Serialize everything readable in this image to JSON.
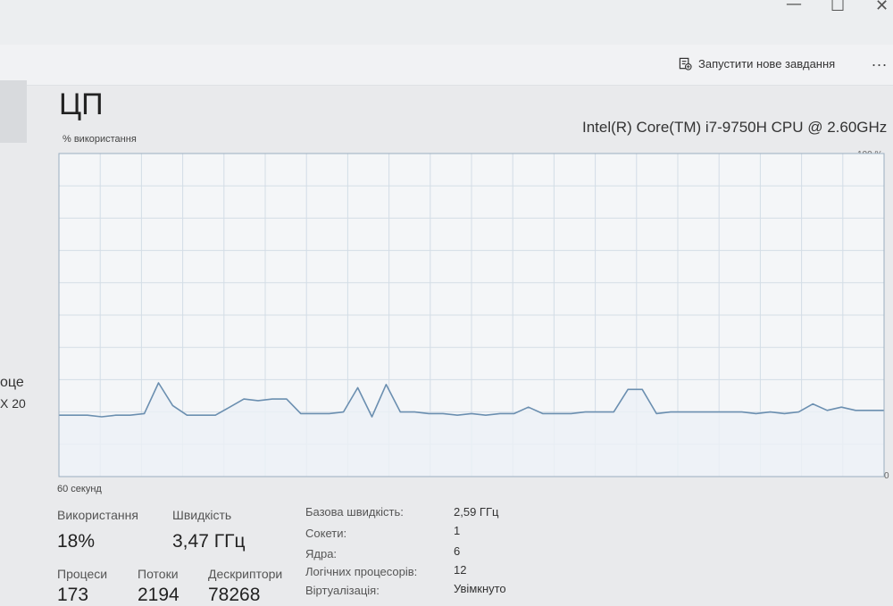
{
  "window": {
    "minimize": "—",
    "maximize": "☐",
    "close": "✕"
  },
  "toolbar": {
    "run_task_label": "Запустити нове завдання",
    "more": "..."
  },
  "sidebar": {
    "text1": "оце",
    "text2": "X 20"
  },
  "header": {
    "title": "ЦП",
    "cpu_model": "Intel(R) Core(TM) i7-9750H CPU @ 2.60GHz"
  },
  "graph": {
    "usage_label": "% використання",
    "max_label": "100 %",
    "min_label": "0",
    "time_label": "60 секунд",
    "colors": {
      "line": "#6b8fb0",
      "grid": "#d3dde6",
      "bg": "#f4f6f8",
      "fill": "#ecf1f6"
    }
  },
  "chart_data": {
    "type": "line",
    "ylabel": "% використання",
    "ylim": [
      0,
      100
    ],
    "xlabel": "60 секунд",
    "grid": true,
    "series": [
      {
        "values": [
          19,
          19,
          19,
          18.5,
          19,
          19,
          19.5,
          29,
          22,
          19,
          19,
          19,
          21.5,
          24,
          23.5,
          24,
          24,
          19.5,
          19.5,
          19.5,
          20,
          27.5,
          18.5,
          28.5,
          20,
          20,
          19.5,
          19.5,
          19,
          19.5,
          19,
          19.5,
          19.5,
          21.5,
          19.5,
          19.5,
          19.5,
          20,
          20,
          20,
          27,
          27,
          19.5,
          20,
          20,
          20,
          20,
          20,
          20,
          19.5,
          20,
          19.5,
          20,
          22.5,
          20.5,
          21.5,
          20.5,
          20.5,
          20.5
        ]
      }
    ]
  },
  "stats": {
    "usage_label": "Використання",
    "usage_value": "18%",
    "speed_label": "Швидкість",
    "speed_value": "3,47 ГГц",
    "processes_label": "Процеси",
    "processes_value": "173",
    "threads_label": "Потоки",
    "threads_value": "2194",
    "handles_label": "Дескриптори",
    "handles_value": "78268"
  },
  "details": {
    "base_speed_label": "Базова швидкість:",
    "base_speed_value": "2,59 ГГц",
    "sockets_label": "Сокети:",
    "sockets_value": "1",
    "cores_label": "Ядра:",
    "cores_value": "6",
    "logical_label": "Логічних процесорів:",
    "logical_value": "12",
    "virtualization_label": "Віртуалізація:",
    "virtualization_value": "Увімкнуто"
  }
}
